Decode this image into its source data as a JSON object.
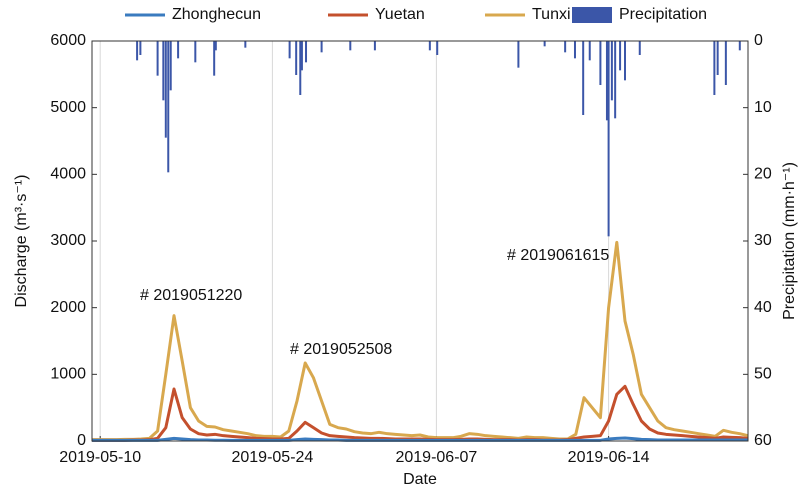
{
  "chart_data": {
    "type": "line",
    "xlabel": "Date",
    "ylabel": "Discharge (m³·s⁻¹)",
    "y2label": "Precipitation (mm·h⁻¹)",
    "x": [
      0,
      1,
      2,
      3,
      4,
      5,
      6,
      7,
      8,
      9,
      10,
      11,
      12,
      13,
      14,
      15,
      16,
      17,
      18,
      19,
      20,
      21,
      22,
      23,
      24,
      25,
      26,
      27,
      28,
      29,
      30,
      31,
      32,
      33,
      34,
      35,
      36,
      37,
      38,
      39,
      40,
      41,
      42,
      43,
      44,
      45,
      46,
      47,
      48,
      49,
      50,
      51,
      52,
      53,
      54,
      55,
      56,
      57,
      58,
      59,
      60,
      61,
      62,
      63,
      64,
      65,
      66,
      67,
      68,
      69,
      70,
      71,
      72,
      73,
      74,
      75,
      76,
      77,
      78,
      79,
      80
    ],
    "xlim": [
      0,
      80
    ],
    "xticks": [
      {
        "value": 1,
        "label": "2019-05-10"
      },
      {
        "value": 22,
        "label": "2019-05-24"
      },
      {
        "value": 42,
        "label": "2019-06-07"
      },
      {
        "value": 63,
        "label": "2019-06-14"
      }
    ],
    "ylim": [
      0,
      6000
    ],
    "yticks": [
      0,
      1000,
      2000,
      3000,
      4000,
      5000,
      6000
    ],
    "y2lim": [
      60,
      0
    ],
    "y2ticks": [
      0,
      10,
      20,
      30,
      40,
      50,
      60
    ],
    "grid": "x",
    "legend": "top",
    "series": [
      {
        "name": "Zhonghecun",
        "color": "#3a7bbf",
        "values": [
          10,
          10,
          10,
          10,
          10,
          10,
          10,
          10,
          10,
          25,
          40,
          30,
          20,
          15,
          15,
          12,
          12,
          10,
          10,
          10,
          10,
          10,
          10,
          10,
          10,
          20,
          30,
          25,
          20,
          15,
          15,
          10,
          10,
          10,
          10,
          10,
          10,
          10,
          10,
          10,
          10,
          10,
          10,
          10,
          10,
          10,
          10,
          10,
          10,
          10,
          10,
          10,
          10,
          10,
          10,
          10,
          10,
          10,
          10,
          10,
          10,
          10,
          10,
          30,
          40,
          45,
          35,
          25,
          20,
          15,
          15,
          15,
          15,
          15,
          15,
          15,
          15,
          15,
          15,
          15,
          15
        ]
      },
      {
        "name": "Yuetan",
        "color": "#c4502d",
        "values": [
          10,
          10,
          10,
          10,
          10,
          15,
          15,
          20,
          40,
          200,
          780,
          350,
          180,
          110,
          90,
          100,
          80,
          70,
          60,
          50,
          40,
          35,
          30,
          30,
          40,
          150,
          280,
          200,
          120,
          80,
          70,
          60,
          50,
          45,
          40,
          40,
          35,
          30,
          30,
          30,
          30,
          25,
          20,
          20,
          20,
          25,
          30,
          30,
          25,
          20,
          20,
          20,
          15,
          20,
          20,
          15,
          15,
          15,
          20,
          40,
          60,
          70,
          80,
          300,
          700,
          820,
          550,
          300,
          180,
          120,
          100,
          90,
          80,
          70,
          60,
          50,
          40,
          60,
          55,
          50,
          40
        ]
      },
      {
        "name": "Tunxi",
        "color": "#d8a84e",
        "values": [
          20,
          20,
          20,
          20,
          25,
          25,
          30,
          40,
          150,
          1000,
          1880,
          1200,
          500,
          300,
          220,
          210,
          170,
          150,
          130,
          110,
          80,
          70,
          70,
          60,
          150,
          600,
          1170,
          950,
          600,
          250,
          200,
          180,
          140,
          120,
          110,
          130,
          110,
          100,
          90,
          80,
          90,
          60,
          50,
          50,
          50,
          70,
          110,
          100,
          80,
          70,
          60,
          50,
          40,
          60,
          50,
          50,
          40,
          30,
          30,
          100,
          650,
          500,
          350,
          2000,
          2980,
          1800,
          1300,
          700,
          500,
          300,
          200,
          170,
          150,
          130,
          110,
          90,
          70,
          160,
          130,
          110,
          80
        ]
      },
      {
        "name": "Precipitation",
        "color": "#3b56a8",
        "type": "bar",
        "axis": "y2",
        "x": [
          5.5,
          5.9,
          8.0,
          8.7,
          9.0,
          9.3,
          9.6,
          10.5,
          12.6,
          14.9,
          15.1,
          18.7,
          24.1,
          24.9,
          25.4,
          25.6,
          26.1,
          28.0,
          31.5,
          34.5,
          41.2,
          42.1,
          52.0,
          55.2,
          57.7,
          58.9,
          59.9,
          60.7,
          62.0,
          62.8,
          63.0,
          63.4,
          63.8,
          64.4,
          65.0,
          66.8,
          75.9,
          76.3,
          77.3,
          79.0
        ],
        "values": [
          2.9,
          2.1,
          5.2,
          8.9,
          14.5,
          19.7,
          7.4,
          2.6,
          3.2,
          5.2,
          1.4,
          1.0,
          2.6,
          5.1,
          8.1,
          4.4,
          3.2,
          1.7,
          1.4,
          1.4,
          1.4,
          2.1,
          4.0,
          0.8,
          1.7,
          2.6,
          11.1,
          2.9,
          6.6,
          11.9,
          29.3,
          8.9,
          11.6,
          4.4,
          5.9,
          2.1,
          8.1,
          5.1,
          6.6,
          1.4
        ]
      }
    ],
    "annotations": [
      "# 2019051220",
      "# 2019052508",
      "# 2019061615"
    ]
  }
}
